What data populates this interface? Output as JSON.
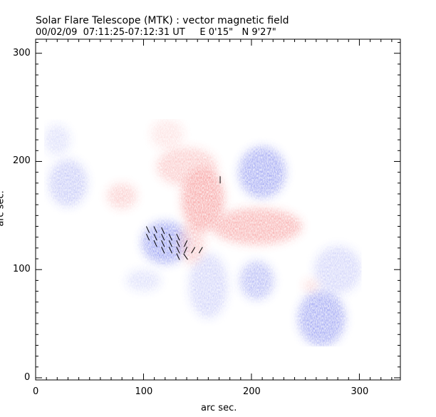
{
  "header": {
    "title": "Solar Flare Telescope (MTK) : vector magnetic field",
    "subtitle": "00/02/09  07:11:25-07:12:31 UT     E 0'15\"   N 9'27\""
  },
  "chart_data": {
    "type": "heatmap",
    "title": "Solar Flare Telescope (MTK) : vector magnetic field",
    "subtitle": "00/02/09  07:11:25-07:12:31 UT     E 0'15\"   N 9'27\"",
    "xlabel": "arc sec.",
    "ylabel": "arc sec.",
    "xlim": [
      0,
      338
    ],
    "ylim": [
      -2,
      313
    ],
    "xticks": [
      0,
      100,
      200,
      300
    ],
    "yticks": [
      0,
      100,
      200,
      300
    ],
    "colors": {
      "positive": "#f05050",
      "negative": "#4a55e8",
      "background": "#ffffff"
    },
    "positive_regions": [
      {
        "x": 155,
        "y": 165,
        "rx": 20,
        "ry": 30,
        "strength": 0.9
      },
      {
        "x": 140,
        "y": 195,
        "rx": 28,
        "ry": 18,
        "strength": 0.55
      },
      {
        "x": 205,
        "y": 140,
        "rx": 42,
        "ry": 17,
        "strength": 0.8
      },
      {
        "x": 80,
        "y": 168,
        "rx": 14,
        "ry": 12,
        "strength": 0.5
      },
      {
        "x": 122,
        "y": 225,
        "rx": 15,
        "ry": 14,
        "strength": 0.3
      },
      {
        "x": 145,
        "y": 125,
        "rx": 12,
        "ry": 20,
        "strength": 0.5
      },
      {
        "x": 255,
        "y": 85,
        "rx": 7,
        "ry": 6,
        "strength": 0.4
      }
    ],
    "negative_regions": [
      {
        "x": 120,
        "y": 125,
        "rx": 22,
        "ry": 20,
        "strength": 0.95
      },
      {
        "x": 210,
        "y": 190,
        "rx": 22,
        "ry": 24,
        "strength": 0.9
      },
      {
        "x": 265,
        "y": 55,
        "rx": 22,
        "ry": 26,
        "strength": 0.9
      },
      {
        "x": 205,
        "y": 90,
        "rx": 16,
        "ry": 18,
        "strength": 0.7
      },
      {
        "x": 30,
        "y": 180,
        "rx": 18,
        "ry": 22,
        "strength": 0.55
      },
      {
        "x": 20,
        "y": 220,
        "rx": 12,
        "ry": 14,
        "strength": 0.35
      },
      {
        "x": 160,
        "y": 85,
        "rx": 18,
        "ry": 30,
        "strength": 0.45
      },
      {
        "x": 280,
        "y": 100,
        "rx": 22,
        "ry": 22,
        "strength": 0.45
      },
      {
        "x": 100,
        "y": 90,
        "rx": 16,
        "ry": 10,
        "strength": 0.35
      }
    ],
    "vectors": [
      {
        "x": 104,
        "y": 137,
        "angle": 115
      },
      {
        "x": 111,
        "y": 137,
        "angle": 115
      },
      {
        "x": 118,
        "y": 136,
        "angle": 115
      },
      {
        "x": 104,
        "y": 130,
        "angle": 115
      },
      {
        "x": 111,
        "y": 130,
        "angle": 115
      },
      {
        "x": 118,
        "y": 130,
        "angle": 115
      },
      {
        "x": 125,
        "y": 130,
        "angle": 115
      },
      {
        "x": 132,
        "y": 130,
        "angle": 115
      },
      {
        "x": 111,
        "y": 124,
        "angle": 115
      },
      {
        "x": 118,
        "y": 124,
        "angle": 115
      },
      {
        "x": 125,
        "y": 124,
        "angle": 115
      },
      {
        "x": 132,
        "y": 124,
        "angle": 115
      },
      {
        "x": 139,
        "y": 124,
        "angle": 65
      },
      {
        "x": 118,
        "y": 118,
        "angle": 115
      },
      {
        "x": 125,
        "y": 118,
        "angle": 115
      },
      {
        "x": 132,
        "y": 118,
        "angle": 115
      },
      {
        "x": 139,
        "y": 118,
        "angle": 65
      },
      {
        "x": 146,
        "y": 118,
        "angle": 60
      },
      {
        "x": 153,
        "y": 118,
        "angle": 60
      },
      {
        "x": 132,
        "y": 112,
        "angle": 115
      },
      {
        "x": 139,
        "y": 112,
        "angle": 125
      },
      {
        "x": 171,
        "y": 183,
        "angle": 90
      }
    ]
  }
}
